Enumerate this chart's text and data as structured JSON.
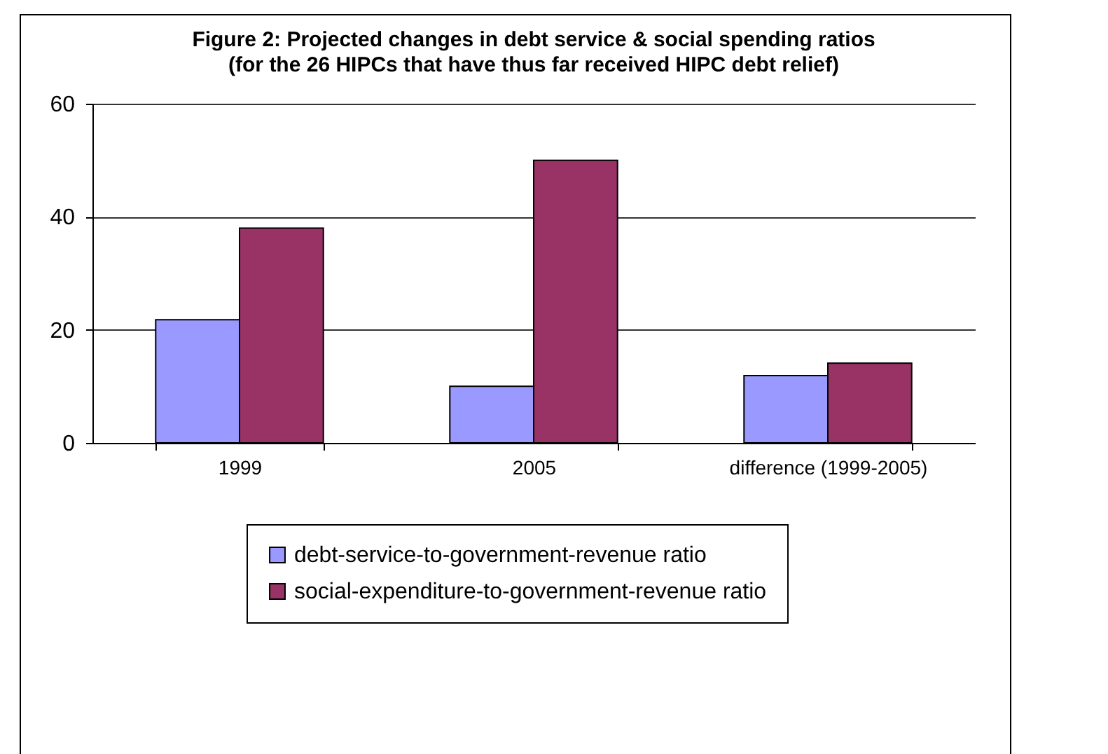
{
  "chart_data": {
    "type": "bar",
    "title": "Figure 2: Projected changes in debt service & social spending ratios",
    "subtitle": "(for the 26 HIPCs that have thus far received HIPC debt relief)",
    "categories": [
      "1999",
      "2005",
      "difference (1999-2005)"
    ],
    "series": [
      {
        "name": "debt-service-to-government-revenue ratio",
        "color": "#9999ff",
        "values": [
          21.8,
          10.0,
          11.9
        ]
      },
      {
        "name": "social-expenditure-to-government-revenue ratio",
        "color": "#993366",
        "values": [
          38.0,
          50.0,
          14.1
        ]
      }
    ],
    "ylim": [
      0,
      60
    ],
    "yticks": [
      0,
      20,
      40,
      60
    ],
    "grid": "y",
    "legend": "bottom"
  }
}
